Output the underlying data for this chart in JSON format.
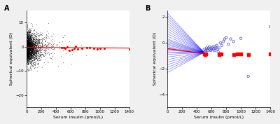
{
  "panel_A": {
    "label": "A",
    "xlabel": "Serum insulin (pmol/L)",
    "ylabel": "Spherical equivalent (D)",
    "xlim": [
      0,
      1400
    ],
    "ylim": [
      -25,
      15
    ],
    "yticks": [
      -20,
      -10,
      0,
      10
    ],
    "xticks": [
      0,
      200,
      400,
      600,
      800,
      1000,
      1200,
      1400
    ],
    "n_black": 2000,
    "red_line_x": [
      0,
      1400
    ],
    "red_line_y": [
      -0.2,
      -0.5
    ],
    "red_dots_x": [
      480,
      510,
      530,
      555,
      580,
      620,
      645,
      665,
      700,
      750,
      820,
      860,
      920,
      960,
      1000,
      1060,
      1400
    ],
    "red_dots_y": [
      -0.3,
      -0.2,
      -0.6,
      -0.1,
      -1.5,
      -1.2,
      -0.5,
      0.2,
      -0.8,
      -0.5,
      -0.4,
      -0.3,
      -0.5,
      -1.0,
      -0.6,
      -0.5,
      -0.8
    ]
  },
  "panel_B": {
    "label": "B",
    "xlabel": "Serum insulin (pmol/L)",
    "ylabel": "Spherical equivalent (D)",
    "xlim": [
      0,
      1400
    ],
    "ylim": [
      -5,
      2.5
    ],
    "yticks": [
      -4,
      -2,
      0,
      2
    ],
    "xticks": [
      0,
      200,
      400,
      600,
      800,
      1000,
      1200,
      1400
    ],
    "blue_fan_x0": 0,
    "blue_fan_x1": 500,
    "blue_fan_y0_list": [
      -1.9,
      -1.7,
      -1.5,
      -1.3,
      -1.1,
      -0.9,
      -0.7,
      -0.5,
      -0.3,
      -0.1,
      0.1,
      0.3,
      0.5,
      0.7,
      0.9,
      1.1,
      1.3,
      1.5,
      1.7,
      1.9,
      -2.1,
      -2.3,
      2.1,
      2.3,
      -0.8,
      -0.6,
      -0.4,
      -0.2,
      0.0,
      0.2
    ],
    "blue_fan_y1": -0.75,
    "red_line_x0": 0,
    "red_line_x1": 500,
    "red_line_y0": -0.45,
    "red_line_y1": -0.85,
    "blue_circles_x": [
      500,
      510,
      520,
      530,
      540,
      550,
      560,
      570,
      580,
      590,
      600,
      610,
      620,
      630,
      640,
      650,
      660,
      670,
      680,
      690,
      700,
      720,
      740,
      760,
      780,
      800,
      830,
      860,
      900,
      1000,
      1100,
      1400
    ],
    "blue_circles_y": [
      -0.5,
      -0.7,
      -0.6,
      -0.4,
      -0.5,
      -0.6,
      -0.4,
      -0.3,
      -0.5,
      -0.6,
      -0.5,
      -0.4,
      -0.3,
      -0.5,
      -0.6,
      -0.3,
      -0.4,
      -0.2,
      -0.5,
      -0.7,
      -0.4,
      0.0,
      -0.2,
      0.1,
      0.3,
      0.4,
      -0.1,
      0.3,
      0.1,
      0.35,
      -2.6,
      1.25
    ],
    "red_squares_x": [
      500,
      510,
      520,
      700,
      710,
      730,
      900,
      950,
      1000,
      1100,
      1400
    ],
    "red_squares_y": [
      -0.85,
      -0.9,
      -0.88,
      -0.9,
      -0.85,
      -0.88,
      -0.9,
      -0.88,
      -0.85,
      -0.9,
      -0.85
    ]
  },
  "figure_bg": "#f0f0f0",
  "axes_bg": "#ffffff"
}
